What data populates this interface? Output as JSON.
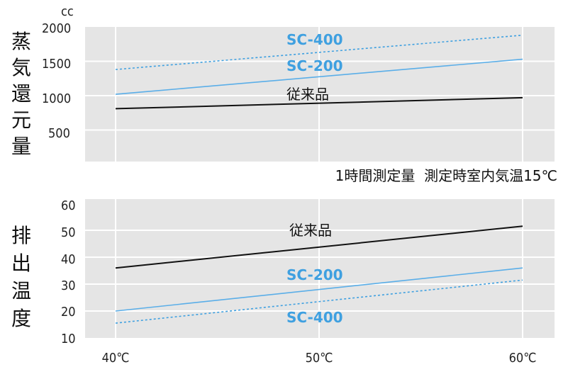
{
  "chart_data": [
    {
      "type": "line",
      "ylabel": "蒸気還元量",
      "yunit": "cc",
      "yticks": [
        "2000",
        "1500",
        "1000",
        "500"
      ],
      "ylim": [
        0,
        2000
      ],
      "x": [
        40,
        60
      ],
      "note": "1時間測定量  測定時室内気温15℃",
      "series": [
        {
          "name": "SC-400",
          "values": [
            1380,
            1880
          ],
          "color": "#3fa0e0",
          "dashed": true
        },
        {
          "name": "SC-200",
          "values": [
            1020,
            1530
          ],
          "color": "#5aaee8",
          "dashed": false
        },
        {
          "name": "従来品",
          "values": [
            810,
            970
          ],
          "color": "#111111",
          "dashed": false
        }
      ]
    },
    {
      "type": "line",
      "ylabel": "排出温度",
      "yticks": [
        "60",
        "50",
        "40",
        "30",
        "20",
        "10"
      ],
      "ylim": [
        10,
        60
      ],
      "xticks": [
        "40℃",
        "50℃",
        "60℃"
      ],
      "x": [
        40,
        60
      ],
      "series": [
        {
          "name": "従来品",
          "values": [
            36,
            51.5
          ],
          "color": "#111111",
          "dashed": false
        },
        {
          "name": "SC-200",
          "values": [
            20,
            36
          ],
          "color": "#5aaee8",
          "dashed": false
        },
        {
          "name": "SC-400",
          "values": [
            15.5,
            31.5
          ],
          "color": "#3fa0e0",
          "dashed": true
        }
      ]
    }
  ],
  "colors": {
    "plot_bg": "#e5e5e5",
    "grid": "#ffffff",
    "label_blue": "#3fa0e0"
  }
}
